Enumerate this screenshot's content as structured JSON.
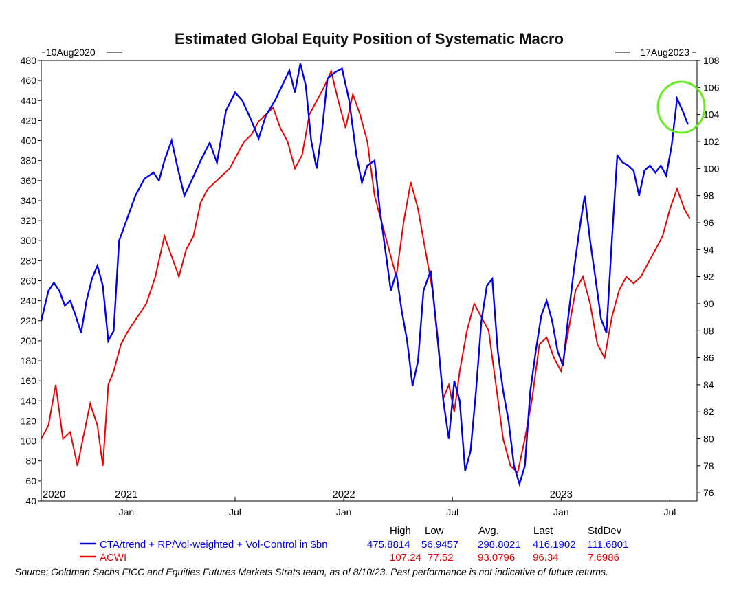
{
  "chart_data": {
    "type": "line",
    "title": "Estimated Global Equity Position of Systematic Macro",
    "start_label": "10Aug2020",
    "end_label": "17Aug2023",
    "x_months": [
      0,
      36.2
    ],
    "left_axis": {
      "min": 40,
      "max": 480,
      "ticks": [
        40,
        60,
        80,
        100,
        120,
        140,
        160,
        180,
        200,
        220,
        240,
        260,
        280,
        300,
        320,
        340,
        360,
        380,
        400,
        420,
        440,
        460,
        480
      ]
    },
    "right_axis": {
      "min": 75.4,
      "max": 108,
      "ticks": [
        76,
        78,
        80,
        82,
        84,
        86,
        88,
        90,
        92,
        94,
        96,
        98,
        100,
        102,
        104,
        106,
        108
      ]
    },
    "x_ticks": [
      {
        "label": "Jan",
        "m": 4.7
      },
      {
        "label": "Jul",
        "m": 10.7
      },
      {
        "label": "Jan",
        "m": 16.7
      },
      {
        "label": "Jul",
        "m": 22.7
      },
      {
        "label": "Jan",
        "m": 28.7
      },
      {
        "label": "Jul",
        "m": 34.7
      }
    ],
    "year_labels": [
      {
        "label": "2020",
        "m": 0.0
      },
      {
        "label": "2021",
        "m": 4.7
      },
      {
        "label": "2022",
        "m": 16.7
      },
      {
        "label": "2023",
        "m": 28.7
      }
    ],
    "series": [
      {
        "name": "CTA/trend + RP/Vol-weighted + Vol-Control in $bn",
        "color": "#0000ee",
        "axis": "left",
        "high": "475.8814",
        "low": "56.9457",
        "avg": "298.8021",
        "last": "416.1902",
        "stddev": "111.6801",
        "points": [
          [
            0,
            220
          ],
          [
            0.4,
            250
          ],
          [
            0.7,
            258
          ],
          [
            1.0,
            250
          ],
          [
            1.3,
            235
          ],
          [
            1.6,
            240
          ],
          [
            1.9,
            225
          ],
          [
            2.2,
            208
          ],
          [
            2.5,
            240
          ],
          [
            2.8,
            262
          ],
          [
            3.1,
            275
          ],
          [
            3.4,
            255
          ],
          [
            3.7,
            200
          ],
          [
            4.0,
            210
          ],
          [
            4.3,
            300
          ],
          [
            4.7,
            320
          ],
          [
            5.2,
            345
          ],
          [
            5.7,
            362
          ],
          [
            6.2,
            368
          ],
          [
            6.5,
            360
          ],
          [
            6.8,
            380
          ],
          [
            7.2,
            400
          ],
          [
            7.5,
            375
          ],
          [
            7.9,
            345
          ],
          [
            8.3,
            360
          ],
          [
            8.8,
            380
          ],
          [
            9.3,
            398
          ],
          [
            9.7,
            378
          ],
          [
            10.2,
            430
          ],
          [
            10.7,
            448
          ],
          [
            11.1,
            440
          ],
          [
            11.6,
            420
          ],
          [
            12.0,
            402
          ],
          [
            12.4,
            425
          ],
          [
            12.9,
            440
          ],
          [
            13.3,
            455
          ],
          [
            13.7,
            470
          ],
          [
            14.0,
            448
          ],
          [
            14.3,
            477
          ],
          [
            14.6,
            455
          ],
          [
            14.9,
            400
          ],
          [
            15.2,
            372
          ],
          [
            15.5,
            410
          ],
          [
            15.8,
            462
          ],
          [
            16.2,
            468
          ],
          [
            16.6,
            472
          ],
          [
            17.0,
            440
          ],
          [
            17.4,
            385
          ],
          [
            17.7,
            358
          ],
          [
            18.0,
            375
          ],
          [
            18.4,
            380
          ],
          [
            18.7,
            330
          ],
          [
            19.0,
            290
          ],
          [
            19.3,
            250
          ],
          [
            19.6,
            268
          ],
          [
            19.9,
            230
          ],
          [
            20.2,
            200
          ],
          [
            20.5,
            155
          ],
          [
            20.8,
            180
          ],
          [
            21.1,
            250
          ],
          [
            21.5,
            270
          ],
          [
            21.9,
            200
          ],
          [
            22.2,
            140
          ],
          [
            22.5,
            102
          ],
          [
            22.8,
            160
          ],
          [
            23.1,
            140
          ],
          [
            23.4,
            70
          ],
          [
            23.7,
            90
          ],
          [
            24.0,
            150
          ],
          [
            24.3,
            220
          ],
          [
            24.6,
            255
          ],
          [
            24.9,
            262
          ],
          [
            25.2,
            190
          ],
          [
            25.5,
            150
          ],
          [
            25.8,
            120
          ],
          [
            26.1,
            75
          ],
          [
            26.4,
            57
          ],
          [
            26.7,
            75
          ],
          [
            27.0,
            150
          ],
          [
            27.3,
            190
          ],
          [
            27.6,
            225
          ],
          [
            27.9,
            240
          ],
          [
            28.2,
            220
          ],
          [
            28.5,
            190
          ],
          [
            28.8,
            175
          ],
          [
            29.1,
            225
          ],
          [
            29.4,
            270
          ],
          [
            29.7,
            310
          ],
          [
            30.0,
            345
          ],
          [
            30.3,
            300
          ],
          [
            30.6,
            262
          ],
          [
            30.9,
            222
          ],
          [
            31.2,
            208
          ],
          [
            31.5,
            300
          ],
          [
            31.8,
            385
          ],
          [
            32.1,
            378
          ],
          [
            32.4,
            375
          ],
          [
            32.7,
            370
          ],
          [
            33.0,
            345
          ],
          [
            33.3,
            370
          ],
          [
            33.6,
            375
          ],
          [
            33.9,
            368
          ],
          [
            34.2,
            375
          ],
          [
            34.5,
            365
          ],
          [
            34.8,
            395
          ],
          [
            35.1,
            442
          ],
          [
            35.4,
            430
          ],
          [
            35.7,
            416
          ]
        ]
      },
      {
        "name": "ACWI",
        "color": "#ee0000",
        "axis": "right",
        "high": "107.24",
        "low": "77.52",
        "avg": "93.0796",
        "last": "96.34",
        "stddev": "7.6986",
        "points": [
          [
            0,
            80
          ],
          [
            0.4,
            81
          ],
          [
            0.8,
            84
          ],
          [
            1.2,
            80
          ],
          [
            1.6,
            80.5
          ],
          [
            2.0,
            78
          ],
          [
            2.3,
            80
          ],
          [
            2.7,
            82.6
          ],
          [
            3.1,
            81
          ],
          [
            3.4,
            78
          ],
          [
            3.7,
            84
          ],
          [
            4.0,
            85
          ],
          [
            4.4,
            87
          ],
          [
            4.8,
            88
          ],
          [
            5.3,
            89
          ],
          [
            5.8,
            90
          ],
          [
            6.3,
            92
          ],
          [
            6.8,
            95
          ],
          [
            7.2,
            93.5
          ],
          [
            7.6,
            92
          ],
          [
            8.0,
            94
          ],
          [
            8.4,
            95
          ],
          [
            8.8,
            97.5
          ],
          [
            9.2,
            98.5
          ],
          [
            9.6,
            99
          ],
          [
            10.0,
            99.5
          ],
          [
            10.4,
            100
          ],
          [
            10.8,
            101
          ],
          [
            11.2,
            102
          ],
          [
            11.6,
            102.5
          ],
          [
            12.0,
            103.5
          ],
          [
            12.4,
            104
          ],
          [
            12.8,
            104.5
          ],
          [
            13.2,
            103
          ],
          [
            13.6,
            102
          ],
          [
            14.0,
            100
          ],
          [
            14.4,
            101
          ],
          [
            14.8,
            104
          ],
          [
            15.2,
            105
          ],
          [
            15.6,
            106
          ],
          [
            16.0,
            107.2
          ],
          [
            16.4,
            105
          ],
          [
            16.8,
            103
          ],
          [
            17.2,
            105.5
          ],
          [
            17.6,
            104
          ],
          [
            18.0,
            102
          ],
          [
            18.4,
            98
          ],
          [
            18.8,
            96
          ],
          [
            19.2,
            94
          ],
          [
            19.6,
            92
          ],
          [
            20.0,
            96
          ],
          [
            20.4,
            99
          ],
          [
            20.8,
            97
          ],
          [
            21.2,
            94
          ],
          [
            21.6,
            91
          ],
          [
            21.9,
            87
          ],
          [
            22.2,
            83
          ],
          [
            22.5,
            84
          ],
          [
            22.8,
            82
          ],
          [
            23.1,
            85
          ],
          [
            23.5,
            88
          ],
          [
            23.9,
            90
          ],
          [
            24.3,
            89
          ],
          [
            24.7,
            88
          ],
          [
            25.1,
            84
          ],
          [
            25.5,
            80
          ],
          [
            25.9,
            78
          ],
          [
            26.3,
            77.5
          ],
          [
            26.7,
            80
          ],
          [
            27.1,
            83
          ],
          [
            27.5,
            87
          ],
          [
            27.9,
            87.5
          ],
          [
            28.3,
            86
          ],
          [
            28.7,
            85
          ],
          [
            29.1,
            88
          ],
          [
            29.5,
            91
          ],
          [
            29.9,
            92
          ],
          [
            30.3,
            90
          ],
          [
            30.7,
            87
          ],
          [
            31.1,
            86
          ],
          [
            31.5,
            89
          ],
          [
            31.9,
            91
          ],
          [
            32.3,
            92
          ],
          [
            32.7,
            91.5
          ],
          [
            33.1,
            92
          ],
          [
            33.5,
            93
          ],
          [
            33.9,
            94
          ],
          [
            34.3,
            95
          ],
          [
            34.7,
            97
          ],
          [
            35.1,
            98.5
          ],
          [
            35.5,
            97
          ],
          [
            35.8,
            96.3
          ]
        ]
      }
    ]
  },
  "stats_headers": {
    "high": "High",
    "low": "Low",
    "avg": "Avg.",
    "last": "Last",
    "stddev": "StdDev"
  },
  "highlight": {
    "color": "#66ee22",
    "note": "circled recent peak"
  },
  "footer_text": "Source: Goldman Sachs FICC and Equities Futures Markets Strats team, as of 8/10/23. Past performance is not indicative of future returns."
}
